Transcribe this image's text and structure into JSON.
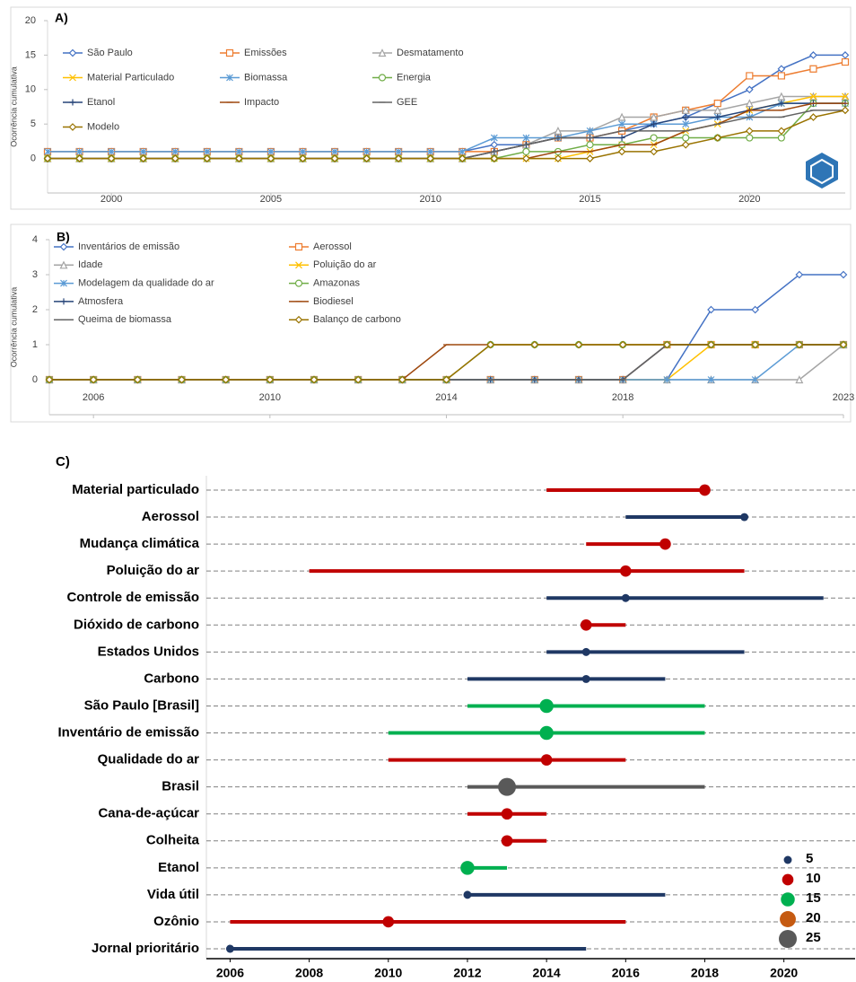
{
  "chart_data": [
    {
      "type": "line",
      "label": "A)",
      "ylabel": "Ocorrência cumulativa",
      "x": [
        1998,
        1999,
        2000,
        2001,
        2002,
        2003,
        2004,
        2005,
        2006,
        2007,
        2008,
        2009,
        2010,
        2011,
        2012,
        2013,
        2014,
        2015,
        2016,
        2017,
        2018,
        2019,
        2020,
        2021,
        2022,
        2023
      ],
      "xlim": [
        1998,
        2023
      ],
      "xticks": [
        2000,
        2005,
        2010,
        2015,
        2020
      ],
      "ylim": [
        -5,
        20
      ],
      "yticks": [
        0,
        5,
        10,
        15,
        20
      ],
      "series": [
        {
          "name": "São Paulo",
          "color": "#4472c4",
          "marker": "diamond",
          "values": [
            1,
            1,
            1,
            1,
            1,
            1,
            1,
            1,
            1,
            1,
            1,
            1,
            1,
            1,
            2,
            2,
            3,
            3,
            4,
            5,
            6,
            8,
            10,
            13,
            15,
            15
          ]
        },
        {
          "name": "Emissões",
          "color": "#ed7d31",
          "marker": "square",
          "values": [
            1,
            1,
            1,
            1,
            1,
            1,
            1,
            1,
            1,
            1,
            1,
            1,
            1,
            1,
            1,
            2,
            3,
            3,
            4,
            6,
            7,
            8,
            12,
            12,
            13,
            14
          ]
        },
        {
          "name": "Desmatamento",
          "color": "#a5a5a5",
          "marker": "triangle",
          "values": [
            0,
            0,
            0,
            0,
            0,
            0,
            0,
            0,
            0,
            0,
            0,
            0,
            0,
            0,
            1,
            2,
            4,
            4,
            6,
            6,
            7,
            7,
            8,
            9,
            9,
            9
          ]
        },
        {
          "name": "Material Particulado",
          "color": "#ffc000",
          "marker": "x",
          "values": [
            0,
            0,
            0,
            0,
            0,
            0,
            0,
            0,
            0,
            0,
            0,
            0,
            0,
            0,
            0,
            0,
            0,
            1,
            2,
            2,
            4,
            5,
            7,
            8,
            9,
            9
          ]
        },
        {
          "name": "Biomassa",
          "color": "#5b9bd5",
          "marker": "star",
          "values": [
            1,
            1,
            1,
            1,
            1,
            1,
            1,
            1,
            1,
            1,
            1,
            1,
            1,
            1,
            3,
            3,
            3,
            4,
            5,
            5,
            5,
            6,
            6,
            8,
            8,
            8
          ]
        },
        {
          "name": "Energia",
          "color": "#70ad47",
          "marker": "circle",
          "values": [
            0,
            0,
            0,
            0,
            0,
            0,
            0,
            0,
            0,
            0,
            0,
            0,
            0,
            0,
            0,
            1,
            1,
            2,
            2,
            3,
            3,
            3,
            3,
            3,
            8,
            8
          ]
        },
        {
          "name": "Etanol",
          "color": "#264478",
          "marker": "plus",
          "values": [
            0,
            0,
            0,
            0,
            0,
            0,
            0,
            0,
            0,
            0,
            0,
            0,
            0,
            0,
            1,
            2,
            3,
            3,
            3,
            5,
            6,
            6,
            7,
            8,
            8,
            8
          ]
        },
        {
          "name": "Impacto",
          "color": "#9e480e",
          "marker": "dash",
          "values": [
            0,
            0,
            0,
            0,
            0,
            0,
            0,
            0,
            0,
            0,
            0,
            0,
            0,
            0,
            0,
            0,
            1,
            1,
            2,
            2,
            4,
            5,
            7,
            7,
            8,
            8
          ]
        },
        {
          "name": "GEE",
          "color": "#636363",
          "marker": "dash",
          "values": [
            0,
            0,
            0,
            0,
            0,
            0,
            0,
            0,
            0,
            0,
            0,
            0,
            0,
            0,
            1,
            2,
            3,
            3,
            4,
            4,
            4,
            5,
            6,
            6,
            7,
            7
          ]
        },
        {
          "name": "Modelo",
          "color": "#997300",
          "marker": "diamond",
          "values": [
            0,
            0,
            0,
            0,
            0,
            0,
            0,
            0,
            0,
            0,
            0,
            0,
            0,
            0,
            0,
            0,
            0,
            0,
            1,
            1,
            2,
            3,
            4,
            4,
            6,
            7
          ]
        }
      ]
    },
    {
      "type": "line",
      "label": "B)",
      "ylabel": "Ocorrência cumulativa",
      "x": [
        2005,
        2006,
        2007,
        2008,
        2009,
        2010,
        2011,
        2012,
        2013,
        2014,
        2015,
        2016,
        2017,
        2018,
        2019,
        2020,
        2021,
        2022,
        2023
      ],
      "xlim": [
        2005,
        2023
      ],
      "xticks": [
        2006,
        2010,
        2014,
        2018,
        2023
      ],
      "ylim": [
        -1,
        4
      ],
      "yticks": [
        0,
        1,
        2,
        3,
        4
      ],
      "series": [
        {
          "name": "Inventários de emissão",
          "color": "#4472c4",
          "marker": "diamond",
          "values": [
            0,
            0,
            0,
            0,
            0,
            0,
            0,
            0,
            0,
            0,
            0,
            0,
            0,
            0,
            0,
            2,
            2,
            3,
            3
          ]
        },
        {
          "name": "Aerossol",
          "color": "#ed7d31",
          "marker": "square",
          "values": [
            0,
            0,
            0,
            0,
            0,
            0,
            0,
            0,
            0,
            0,
            0,
            0,
            0,
            0,
            1,
            1,
            1,
            1,
            1
          ]
        },
        {
          "name": "Idade",
          "color": "#a5a5a5",
          "marker": "triangle",
          "values": [
            0,
            0,
            0,
            0,
            0,
            0,
            0,
            0,
            0,
            0,
            0,
            0,
            0,
            0,
            0,
            0,
            0,
            0,
            1
          ]
        },
        {
          "name": "Poluição do ar",
          "color": "#ffc000",
          "marker": "x",
          "values": [
            0,
            0,
            0,
            0,
            0,
            0,
            0,
            0,
            0,
            0,
            0,
            0,
            0,
            0,
            0,
            1,
            1,
            1,
            1
          ]
        },
        {
          "name": "Modelagem da qualidade do ar",
          "color": "#5b9bd5",
          "marker": "star",
          "values": [
            0,
            0,
            0,
            0,
            0,
            0,
            0,
            0,
            0,
            0,
            0,
            0,
            0,
            0,
            0,
            0,
            0,
            1,
            1
          ]
        },
        {
          "name": "Amazonas",
          "color": "#70ad47",
          "marker": "circle",
          "values": [
            0,
            0,
            0,
            0,
            0,
            0,
            0,
            0,
            0,
            0,
            1,
            1,
            1,
            1,
            1,
            1,
            1,
            1,
            1
          ]
        },
        {
          "name": "Atmosfera",
          "color": "#264478",
          "marker": "plus",
          "values": [
            0,
            0,
            0,
            0,
            0,
            0,
            0,
            0,
            0,
            0,
            0,
            0,
            0,
            0,
            1,
            1,
            1,
            1,
            1
          ]
        },
        {
          "name": "Biodiesel",
          "color": "#9e480e",
          "marker": "dash",
          "values": [
            0,
            0,
            0,
            0,
            0,
            0,
            0,
            0,
            0,
            1,
            1,
            1,
            1,
            1,
            1,
            1,
            1,
            1,
            1
          ]
        },
        {
          "name": "Queima de biomassa",
          "color": "#636363",
          "marker": "dash",
          "values": [
            0,
            0,
            0,
            0,
            0,
            0,
            0,
            0,
            0,
            0,
            0,
            0,
            0,
            0,
            1,
            1,
            1,
            1,
            1
          ]
        },
        {
          "name": "Balanço de carbono",
          "color": "#997300",
          "marker": "diamond",
          "values": [
            0,
            0,
            0,
            0,
            0,
            0,
            0,
            0,
            0,
            0,
            1,
            1,
            1,
            1,
            1,
            1,
            1,
            1,
            1
          ]
        }
      ]
    },
    {
      "type": "range",
      "label": "C)",
      "categories": [
        "Material particulado",
        "Aerossol",
        "Mudança climática",
        "Poluição do ar",
        "Controle de emissão",
        "Dióxido de carbono",
        "Estados Unidos",
        "Carbono",
        "São Paulo [Brasil]",
        "Inventário de emissão",
        "Qualidade do ar",
        "Brasil",
        "Cana-de-açúcar",
        "Colheita",
        "Etanol",
        "Vida útil",
        "Ozônio",
        "Jornal prioritário"
      ],
      "start": [
        2014,
        2016,
        2015,
        2008,
        2014,
        2015,
        2014,
        2012,
        2012,
        2010,
        2010,
        2012,
        2012,
        2013,
        2012,
        2012,
        2006,
        2006
      ],
      "end": [
        2018,
        2019,
        2017,
        2019,
        2021,
        2016,
        2019,
        2017,
        2018,
        2018,
        2016,
        2018,
        2014,
        2014,
        2013,
        2017,
        2016,
        2015
      ],
      "values": [
        2018,
        2019,
        2017,
        2016,
        2016,
        2015,
        2015,
        2015,
        2014,
        2014,
        2014,
        2013,
        2013,
        2013,
        2012,
        2012,
        2010,
        2006
      ],
      "sizes": [
        10,
        5,
        10,
        10,
        5,
        10,
        5,
        5,
        15,
        15,
        10,
        25,
        10,
        10,
        15,
        5,
        10,
        5
      ],
      "size_legend": {
        "values": [
          5,
          10,
          15,
          20,
          25
        ],
        "colors": [
          "#1f3864",
          "#c00000",
          "#00b050",
          "#c55a11",
          "#595959"
        ]
      },
      "xlim": [
        2005.4,
        2021.8
      ],
      "xticks": [
        2006,
        2008,
        2010,
        2012,
        2014,
        2016,
        2018,
        2020
      ]
    }
  ]
}
